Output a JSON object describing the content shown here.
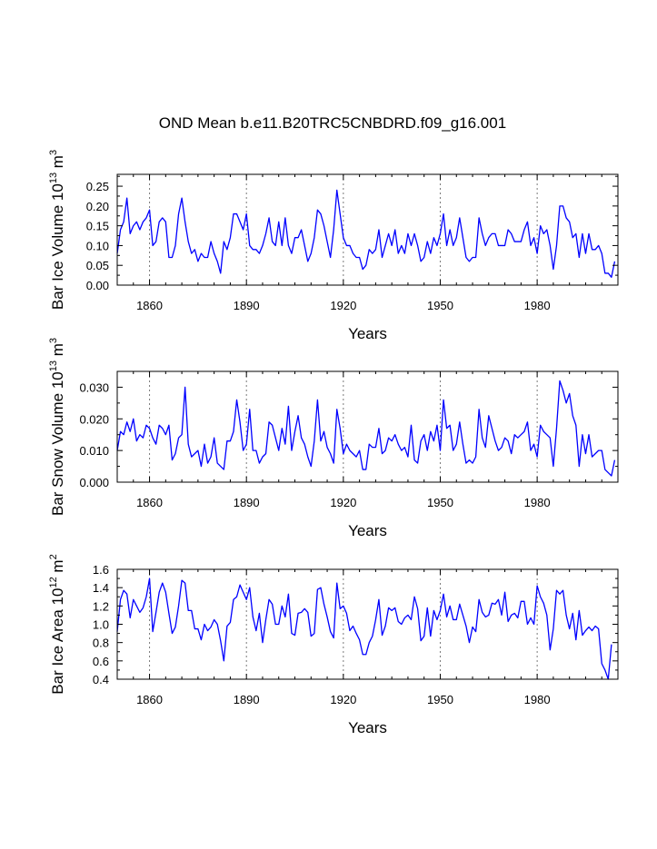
{
  "title": "OND Mean b.e11.B20TRC5CNBDRD.f09_g16.001",
  "colors": {
    "line": "#0000ff",
    "grid": "#7a7a7a",
    "frame": "#000000"
  },
  "chart_data": [
    {
      "type": "line",
      "xlabel": "Years",
      "ylabel": "Bar Ice Volume 10",
      "ylabel_exp": "13",
      "ylabel_unit": " m",
      "ylabel_unit_exp": "3",
      "xlim": [
        1850,
        2005
      ],
      "ylim": [
        0.0,
        0.28
      ],
      "xticks": [
        1860,
        1890,
        1920,
        1950,
        1980
      ],
      "xtick_labels": [
        "1860",
        "1890",
        "1920",
        "1950",
        "1980"
      ],
      "yticks": [
        0.0,
        0.05,
        0.1,
        0.15,
        0.2,
        0.25
      ],
      "ytick_labels": [
        "0.00",
        "0.05",
        "0.10",
        "0.15",
        "0.20",
        "0.25"
      ],
      "grid": "vertical dashed at 1860, 1890, 1920, 1950, 1980",
      "series": [
        {
          "name": "Ice Volume",
          "x_start": 1850,
          "values": [
            0.08,
            0.14,
            0.16,
            0.22,
            0.13,
            0.15,
            0.16,
            0.14,
            0.16,
            0.17,
            0.19,
            0.1,
            0.11,
            0.16,
            0.17,
            0.16,
            0.07,
            0.07,
            0.1,
            0.18,
            0.22,
            0.16,
            0.11,
            0.08,
            0.09,
            0.06,
            0.08,
            0.07,
            0.07,
            0.11,
            0.08,
            0.06,
            0.03,
            0.11,
            0.09,
            0.12,
            0.18,
            0.18,
            0.16,
            0.14,
            0.18,
            0.1,
            0.09,
            0.09,
            0.08,
            0.1,
            0.13,
            0.17,
            0.11,
            0.1,
            0.16,
            0.1,
            0.17,
            0.1,
            0.08,
            0.12,
            0.12,
            0.14,
            0.1,
            0.06,
            0.08,
            0.12,
            0.19,
            0.18,
            0.15,
            0.11,
            0.07,
            0.14,
            0.24,
            0.18,
            0.12,
            0.1,
            0.1,
            0.08,
            0.07,
            0.07,
            0.04,
            0.05,
            0.09,
            0.08,
            0.09,
            0.14,
            0.07,
            0.1,
            0.13,
            0.1,
            0.14,
            0.08,
            0.1,
            0.08,
            0.13,
            0.1,
            0.13,
            0.1,
            0.06,
            0.07,
            0.11,
            0.08,
            0.12,
            0.1,
            0.13,
            0.18,
            0.1,
            0.14,
            0.1,
            0.12,
            0.17,
            0.12,
            0.07,
            0.06,
            0.07,
            0.07,
            0.17,
            0.13,
            0.1,
            0.12,
            0.13,
            0.13,
            0.1,
            0.1,
            0.1,
            0.14,
            0.13,
            0.11,
            0.11,
            0.11,
            0.14,
            0.16,
            0.1,
            0.12,
            0.08,
            0.15,
            0.13,
            0.14,
            0.1,
            0.04,
            0.1,
            0.2,
            0.2,
            0.17,
            0.16,
            0.12,
            0.13,
            0.07,
            0.13,
            0.08,
            0.13,
            0.09,
            0.09,
            0.1,
            0.08,
            0.03,
            0.03,
            0.02,
            0.06
          ]
        }
      ]
    },
    {
      "type": "line",
      "xlabel": "Years",
      "ylabel": "Bar Snow Volume 10",
      "ylabel_exp": "13",
      "ylabel_unit": " m",
      "ylabel_unit_exp": "3",
      "xlim": [
        1850,
        2005
      ],
      "ylim": [
        0.0,
        0.035
      ],
      "xticks": [
        1860,
        1890,
        1920,
        1950,
        1980
      ],
      "xtick_labels": [
        "1860",
        "1890",
        "1920",
        "1950",
        "1980"
      ],
      "yticks": [
        0.0,
        0.01,
        0.02,
        0.03
      ],
      "ytick_labels": [
        "0.000",
        "0.010",
        "0.020",
        "0.030"
      ],
      "grid": "vertical dashed at 1860, 1890, 1920, 1950, 1980",
      "series": [
        {
          "name": "Snow Volume",
          "x_start": 1850,
          "values": [
            0.01,
            0.016,
            0.015,
            0.019,
            0.016,
            0.02,
            0.013,
            0.015,
            0.014,
            0.018,
            0.017,
            0.014,
            0.012,
            0.018,
            0.017,
            0.015,
            0.018,
            0.007,
            0.009,
            0.014,
            0.015,
            0.03,
            0.012,
            0.008,
            0.009,
            0.01,
            0.005,
            0.012,
            0.006,
            0.008,
            0.014,
            0.006,
            0.005,
            0.004,
            0.013,
            0.013,
            0.016,
            0.026,
            0.019,
            0.01,
            0.012,
            0.023,
            0.01,
            0.01,
            0.006,
            0.008,
            0.009,
            0.019,
            0.018,
            0.014,
            0.01,
            0.017,
            0.012,
            0.024,
            0.01,
            0.016,
            0.021,
            0.014,
            0.012,
            0.008,
            0.005,
            0.013,
            0.026,
            0.013,
            0.016,
            0.011,
            0.009,
            0.006,
            0.023,
            0.017,
            0.009,
            0.012,
            0.01,
            0.009,
            0.008,
            0.01,
            0.004,
            0.004,
            0.012,
            0.011,
            0.011,
            0.017,
            0.009,
            0.01,
            0.014,
            0.013,
            0.015,
            0.012,
            0.01,
            0.011,
            0.008,
            0.018,
            0.007,
            0.006,
            0.013,
            0.015,
            0.01,
            0.016,
            0.013,
            0.018,
            0.01,
            0.026,
            0.017,
            0.018,
            0.01,
            0.012,
            0.019,
            0.012,
            0.006,
            0.007,
            0.006,
            0.008,
            0.023,
            0.014,
            0.011,
            0.021,
            0.017,
            0.013,
            0.01,
            0.011,
            0.014,
            0.013,
            0.009,
            0.015,
            0.014,
            0.015,
            0.016,
            0.019,
            0.01,
            0.012,
            0.008,
            0.018,
            0.016,
            0.015,
            0.014,
            0.005,
            0.017,
            0.032,
            0.029,
            0.025,
            0.028,
            0.021,
            0.018,
            0.005,
            0.015,
            0.009,
            0.015,
            0.008,
            0.009,
            0.01,
            0.01,
            0.004,
            0.003,
            0.002,
            0.007
          ]
        }
      ]
    },
    {
      "type": "line",
      "xlabel": "Years",
      "ylabel": "Bar Ice Area 10",
      "ylabel_exp": "12",
      "ylabel_unit": " m",
      "ylabel_unit_exp": "2",
      "xlim": [
        1850,
        2005
      ],
      "ylim": [
        0.4,
        1.6
      ],
      "xticks": [
        1860,
        1890,
        1920,
        1950,
        1980
      ],
      "xtick_labels": [
        "1860",
        "1890",
        "1920",
        "1950",
        "1980"
      ],
      "yticks": [
        0.4,
        0.6,
        0.8,
        1.0,
        1.2,
        1.4,
        1.6
      ],
      "ytick_labels": [
        "0.4",
        "0.6",
        "0.8",
        "1.0",
        "1.2",
        "1.4",
        "1.6"
      ],
      "grid": "vertical dashed at 1860, 1890, 1920, 1950, 1980",
      "series": [
        {
          "name": "Ice Area",
          "x_start": 1850,
          "values": [
            0.92,
            1.27,
            1.37,
            1.33,
            1.07,
            1.27,
            1.2,
            1.13,
            1.18,
            1.3,
            1.5,
            0.92,
            1.13,
            1.35,
            1.45,
            1.35,
            1.12,
            0.9,
            0.97,
            1.2,
            1.48,
            1.45,
            1.15,
            1.15,
            0.95,
            0.95,
            0.83,
            1.0,
            0.93,
            0.97,
            1.05,
            1.0,
            0.82,
            0.6,
            0.98,
            1.02,
            1.27,
            1.3,
            1.43,
            1.35,
            1.27,
            1.4,
            1.08,
            0.93,
            1.12,
            0.8,
            1.05,
            1.27,
            1.22,
            1.0,
            1.0,
            1.2,
            1.08,
            1.33,
            0.9,
            0.88,
            1.12,
            1.13,
            1.17,
            1.13,
            0.87,
            0.9,
            1.38,
            1.4,
            1.22,
            1.08,
            0.92,
            0.85,
            1.45,
            1.17,
            1.2,
            1.12,
            0.93,
            0.98,
            0.9,
            0.83,
            0.67,
            0.67,
            0.8,
            0.87,
            1.05,
            1.27,
            0.88,
            0.98,
            1.18,
            1.15,
            1.18,
            1.03,
            1.0,
            1.07,
            1.1,
            1.05,
            1.3,
            1.17,
            0.82,
            0.87,
            1.18,
            0.87,
            1.15,
            1.05,
            1.15,
            1.33,
            1.08,
            1.2,
            1.05,
            1.05,
            1.22,
            1.1,
            0.98,
            0.8,
            0.97,
            0.92,
            1.27,
            1.13,
            1.08,
            1.1,
            1.23,
            1.22,
            1.27,
            1.1,
            1.35,
            1.03,
            1.1,
            1.12,
            1.07,
            1.25,
            1.25,
            1.0,
            1.07,
            1.0,
            1.42,
            1.3,
            1.23,
            1.1,
            0.72,
            0.95,
            1.37,
            1.33,
            1.37,
            1.1,
            0.95,
            1.12,
            0.83,
            1.15,
            0.88,
            0.93,
            0.97,
            0.93,
            0.98,
            0.95,
            0.57,
            0.5,
            0.4,
            0.78
          ]
        }
      ]
    }
  ]
}
